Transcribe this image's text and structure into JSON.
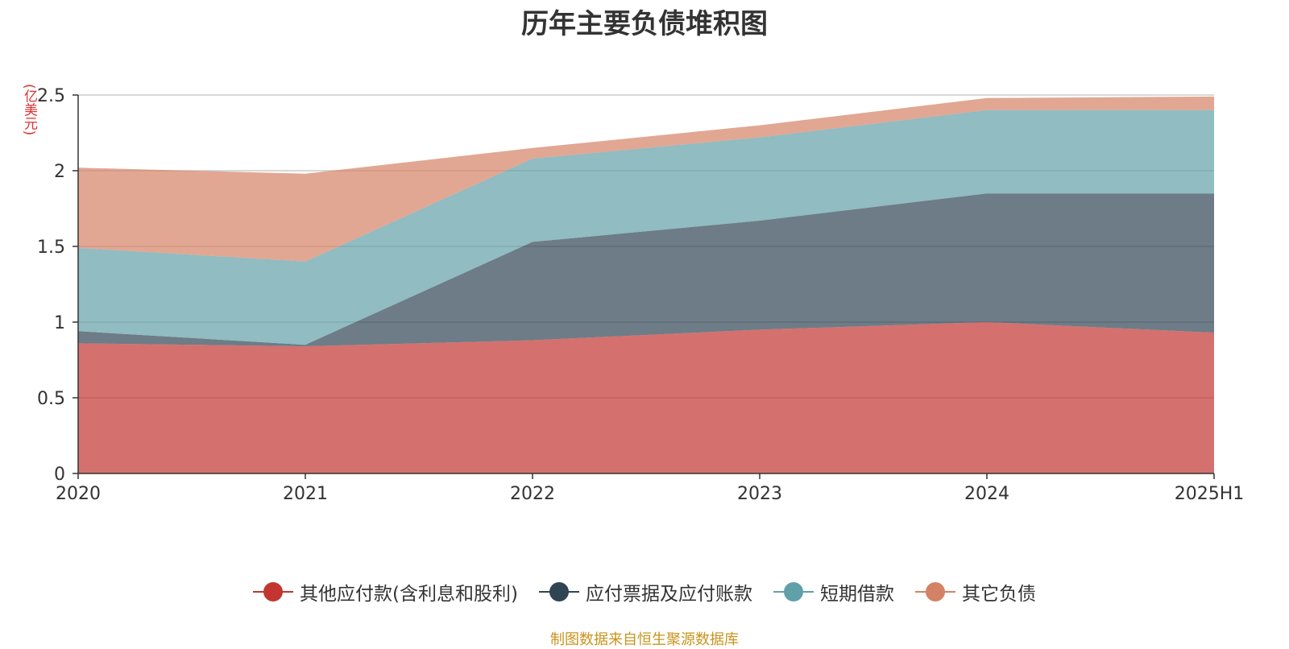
{
  "header": {
    "title": "历年主要负债堆积图",
    "unit": "(亿美元)"
  },
  "source": "制图数据来自恒生聚源数据库",
  "chart_data": {
    "type": "area",
    "stacked": true,
    "title": "历年主要负债堆积图",
    "ylabel": "(亿美元)",
    "x": [
      "2020",
      "2021",
      "2022",
      "2023",
      "2024",
      "2025H1"
    ],
    "ylim": [
      0,
      2.5
    ],
    "yticks": [
      0,
      0.5,
      1,
      1.5,
      2,
      2.5
    ],
    "ytick_labels": [
      "0",
      "0.5",
      "1",
      "1.5",
      "2",
      "2.5"
    ],
    "grid": true,
    "legend_position": "bottom",
    "series": [
      {
        "name": "其他应付款(含利息和股利)",
        "color": "#c23531",
        "values": [
          0.86,
          0.84,
          0.88,
          0.95,
          1.0,
          0.93
        ]
      },
      {
        "name": "应付票据及应付账款",
        "color": "#2f4554",
        "values": [
          0.08,
          0.01,
          0.65,
          0.72,
          0.85,
          0.92
        ]
      },
      {
        "name": "短期借款",
        "color": "#61a0a8",
        "values": [
          0.55,
          0.55,
          0.55,
          0.55,
          0.55,
          0.55
        ]
      },
      {
        "name": "其它负债",
        "color": "#d48265",
        "values": [
          0.53,
          0.58,
          0.07,
          0.08,
          0.08,
          0.09
        ]
      }
    ]
  }
}
